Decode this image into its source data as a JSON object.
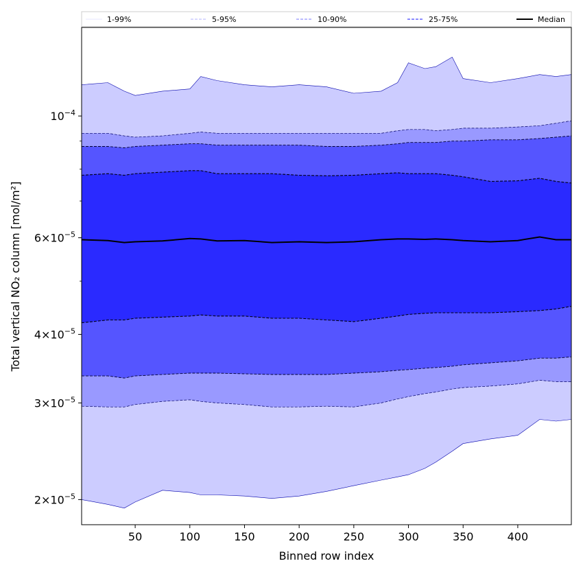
{
  "chart_data": {
    "type": "area",
    "xlabel": "Binned row index",
    "ylabel": "Total vertical NO₂ column [mol/m²]",
    "xlim": [
      1,
      449
    ],
    "ylim": [
      1.8e-05,
      0.000145
    ],
    "yscale": "log",
    "x_ticks": [
      50,
      100,
      150,
      200,
      250,
      300,
      350,
      400
    ],
    "y_ticks": [
      {
        "value": 2e-05,
        "mantissa": "2",
        "exponent": "−5"
      },
      {
        "value": 3e-05,
        "mantissa": "3",
        "exponent": "−5"
      },
      {
        "value": 4e-05,
        "mantissa": "4",
        "exponent": "−5"
      },
      {
        "value": 6e-05,
        "mantissa": "6",
        "exponent": "−5"
      },
      {
        "value": 0.0001,
        "mantissa": "",
        "exponent": "−4"
      }
    ],
    "y_minor_ticks": [
      5e-05,
      7e-05,
      8e-05,
      9e-05
    ],
    "legend": {
      "position": "top",
      "entries": [
        {
          "label": "1-99%",
          "color": "#ccccff"
        },
        {
          "label": "5-95%",
          "color": "#9999ff"
        },
        {
          "label": "10-90%",
          "color": "#5555ff"
        },
        {
          "label": "25-75%",
          "color": "#2a2aff"
        },
        {
          "label": "Median",
          "color": "#000000"
        }
      ]
    },
    "x": [
      1,
      25,
      40,
      50,
      75,
      100,
      110,
      125,
      150,
      175,
      200,
      225,
      250,
      275,
      290,
      300,
      315,
      325,
      340,
      350,
      375,
      400,
      420,
      435,
      449
    ],
    "series": [
      {
        "name": "1-99%",
        "band": "lower",
        "color": "#ccccff",
        "values": [
          2e-05,
          1.96e-05,
          1.93e-05,
          1.98e-05,
          2.08e-05,
          2.06e-05,
          2.04e-05,
          2.04e-05,
          2.03e-05,
          2.01e-05,
          2.03e-05,
          2.07e-05,
          2.12e-05,
          2.17e-05,
          2.2e-05,
          2.22e-05,
          2.28e-05,
          2.34e-05,
          2.45e-05,
          2.53e-05,
          2.58e-05,
          2.62e-05,
          2.8e-05,
          2.78e-05,
          2.8e-05
        ]
      },
      {
        "name": "1-99%",
        "band": "upper",
        "color": "#ccccff",
        "values": [
          0.000114,
          0.000115,
          0.000111,
          0.000109,
          0.000111,
          0.000112,
          0.000118,
          0.000116,
          0.000114,
          0.000113,
          0.000114,
          0.000113,
          0.00011,
          0.000111,
          0.000115,
          0.000125,
          0.000122,
          0.000123,
          0.000128,
          0.000117,
          0.000115,
          0.000117,
          0.000119,
          0.000118,
          0.000119
        ]
      },
      {
        "name": "5-95%",
        "band": "lower",
        "color": "#9999ff",
        "values": [
          2.96e-05,
          2.95e-05,
          2.95e-05,
          2.98e-05,
          3.02e-05,
          3.04e-05,
          3.02e-05,
          3e-05,
          2.98e-05,
          2.95e-05,
          2.95e-05,
          2.96e-05,
          2.95e-05,
          3e-05,
          3.05e-05,
          3.08e-05,
          3.12e-05,
          3.14e-05,
          3.18e-05,
          3.2e-05,
          3.22e-05,
          3.25e-05,
          3.3e-05,
          3.28e-05,
          3.28e-05
        ]
      },
      {
        "name": "5-95%",
        "band": "upper",
        "color": "#9999ff",
        "values": [
          9.3e-05,
          9.3e-05,
          9.2e-05,
          9.15e-05,
          9.2e-05,
          9.3e-05,
          9.35e-05,
          9.3e-05,
          9.3e-05,
          9.3e-05,
          9.3e-05,
          9.3e-05,
          9.3e-05,
          9.3e-05,
          9.4e-05,
          9.45e-05,
          9.45e-05,
          9.4e-05,
          9.45e-05,
          9.5e-05,
          9.5e-05,
          9.55e-05,
          9.6e-05,
          9.7e-05,
          9.8e-05
        ]
      },
      {
        "name": "10-90%",
        "band": "lower",
        "color": "#5555ff",
        "values": [
          3.36e-05,
          3.36e-05,
          3.33e-05,
          3.36e-05,
          3.38e-05,
          3.4e-05,
          3.4e-05,
          3.4e-05,
          3.39e-05,
          3.38e-05,
          3.38e-05,
          3.38e-05,
          3.4e-05,
          3.42e-05,
          3.44e-05,
          3.45e-05,
          3.47e-05,
          3.48e-05,
          3.5e-05,
          3.52e-05,
          3.55e-05,
          3.58e-05,
          3.62e-05,
          3.62e-05,
          3.64e-05
        ]
      },
      {
        "name": "10-90%",
        "band": "upper",
        "color": "#5555ff",
        "values": [
          8.8e-05,
          8.8e-05,
          8.75e-05,
          8.8e-05,
          8.85e-05,
          8.9e-05,
          8.9e-05,
          8.85e-05,
          8.85e-05,
          8.85e-05,
          8.85e-05,
          8.8e-05,
          8.8e-05,
          8.85e-05,
          8.9e-05,
          8.95e-05,
          8.95e-05,
          8.95e-05,
          9e-05,
          9e-05,
          9.05e-05,
          9.05e-05,
          9.1e-05,
          9.15e-05,
          9.2e-05
        ]
      },
      {
        "name": "25-75%",
        "band": "lower",
        "color": "#2a2aff",
        "values": [
          4.2e-05,
          4.25e-05,
          4.25e-05,
          4.28e-05,
          4.3e-05,
          4.32e-05,
          4.34e-05,
          4.32e-05,
          4.32e-05,
          4.28e-05,
          4.28e-05,
          4.25e-05,
          4.22e-05,
          4.28e-05,
          4.32e-05,
          4.35e-05,
          4.37e-05,
          4.38e-05,
          4.38e-05,
          4.38e-05,
          4.38e-05,
          4.4e-05,
          4.42e-05,
          4.45e-05,
          4.5e-05
        ]
      },
      {
        "name": "25-75%",
        "band": "upper",
        "color": "#2a2aff",
        "values": [
          7.8e-05,
          7.85e-05,
          7.8e-05,
          7.85e-05,
          7.9e-05,
          7.95e-05,
          7.95e-05,
          7.85e-05,
          7.85e-05,
          7.85e-05,
          7.8e-05,
          7.78e-05,
          7.8e-05,
          7.85e-05,
          7.88e-05,
          7.85e-05,
          7.85e-05,
          7.85e-05,
          7.8e-05,
          7.75e-05,
          7.6e-05,
          7.62e-05,
          7.7e-05,
          7.6e-05,
          7.55e-05
        ]
      },
      {
        "name": "Median",
        "color": "#000000",
        "values": [
          5.95e-05,
          5.93e-05,
          5.88e-05,
          5.9e-05,
          5.92e-05,
          5.98e-05,
          5.97e-05,
          5.92e-05,
          5.93e-05,
          5.88e-05,
          5.9e-05,
          5.88e-05,
          5.9e-05,
          5.95e-05,
          5.97e-05,
          5.97e-05,
          5.96e-05,
          5.97e-05,
          5.95e-05,
          5.93e-05,
          5.9e-05,
          5.93e-05,
          6.02e-05,
          5.95e-05,
          5.95e-05
        ]
      }
    ]
  }
}
